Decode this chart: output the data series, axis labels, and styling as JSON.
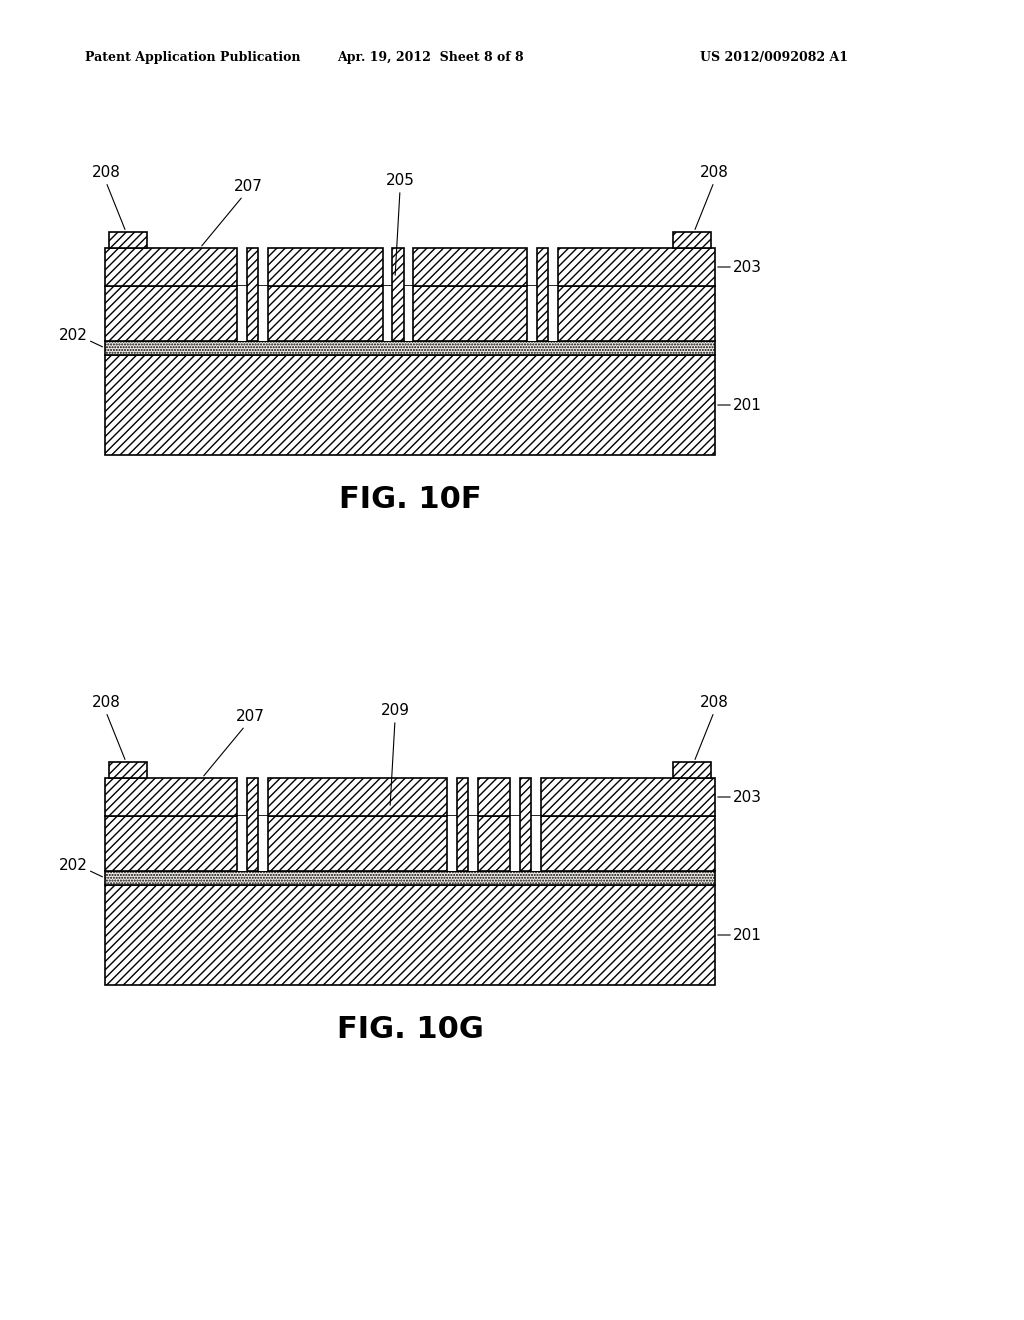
{
  "bg_color": "#ffffff",
  "header_left": "Patent Application Publication",
  "header_center": "Apr. 19, 2012  Sheet 8 of 8",
  "header_right": "US 2012/0092082 A1",
  "fig1_label": "FIG. 10F",
  "fig2_label": "FIG. 10G"
}
